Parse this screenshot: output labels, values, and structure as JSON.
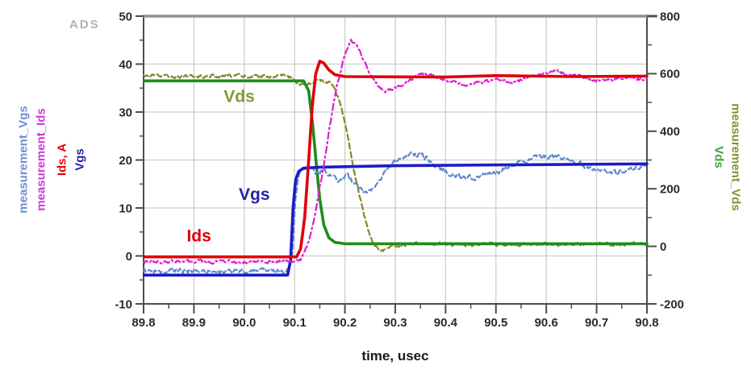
{
  "watermark": "ADS",
  "chart_data": {
    "type": "line",
    "title": "",
    "xlabel": "time, usec",
    "x_range": [
      89.8,
      90.8
    ],
    "x_ticks": {
      "values": [
        89.8,
        89.9,
        90.0,
        90.1,
        90.2,
        90.3,
        90.4,
        90.5,
        90.6,
        90.7,
        90.8
      ],
      "labels": [
        "89.8",
        "89.9",
        "90.0",
        "90.1",
        "90.2",
        "90.3",
        "90.4",
        "90.5",
        "90.6",
        "90.7",
        "90.8"
      ]
    },
    "left_axis": {
      "range": [
        -10,
        50
      ],
      "values": [
        50,
        40,
        30,
        20,
        10,
        0,
        -10
      ],
      "labels": [
        "50",
        "40",
        "30",
        "20",
        "10",
        "0",
        "-10"
      ],
      "title_stack": [
        {
          "text": "measurement_Vgs",
          "color": "#6f8fd2"
        },
        {
          "text": "measurement_Ids",
          "color": "#cb3ad4"
        },
        {
          "text": "Ids, A",
          "color": "#e00008"
        },
        {
          "text": "Vgs",
          "color": "#2424aa"
        }
      ]
    },
    "right_axis": {
      "range": [
        -200,
        800
      ],
      "values": [
        800,
        600,
        400,
        200,
        0,
        -200
      ],
      "labels": [
        "800",
        "600",
        "400",
        "200",
        "0",
        "-200"
      ],
      "title_stack": [
        {
          "text": "Vds",
          "color": "#3fa03f"
        },
        {
          "text": "measurement_Vds",
          "color": "#8a8f2f"
        }
      ]
    },
    "colors": {
      "grid": "#cdcdcd",
      "axis": "#4d4d4d",
      "border": "#919191",
      "tick_text": "#2b2b2b"
    },
    "series": [
      {
        "name": "measurement_Vds",
        "axis": "right",
        "color": "#808b25",
        "width": 2.2,
        "dash": "7 4",
        "noise": 10,
        "points": [
          [
            89.8,
            591
          ],
          [
            90.08,
            591
          ],
          [
            90.1,
            580
          ],
          [
            90.112,
            563
          ],
          [
            90.125,
            561
          ],
          [
            90.14,
            572
          ],
          [
            90.155,
            577
          ],
          [
            90.168,
            570
          ],
          [
            90.18,
            546
          ],
          [
            90.19,
            506
          ],
          [
            90.2,
            432
          ],
          [
            90.21,
            342
          ],
          [
            90.22,
            252
          ],
          [
            90.23,
            166
          ],
          [
            90.24,
            96
          ],
          [
            90.25,
            40
          ],
          [
            90.26,
            0
          ],
          [
            90.272,
            -16
          ],
          [
            90.285,
            -8
          ],
          [
            90.3,
            2
          ],
          [
            90.33,
            8
          ],
          [
            90.4,
            6
          ],
          [
            90.6,
            7
          ],
          [
            90.8,
            6
          ]
        ]
      },
      {
        "name": "Vds",
        "axis": "right",
        "color": "#1e8c1e",
        "width": 3.6,
        "dash": "",
        "noise": 0,
        "points": [
          [
            89.8,
            575
          ],
          [
            90.118,
            575
          ],
          [
            90.128,
            540
          ],
          [
            90.136,
            420
          ],
          [
            90.143,
            290
          ],
          [
            90.15,
            165
          ],
          [
            90.158,
            75
          ],
          [
            90.168,
            30
          ],
          [
            90.18,
            14
          ],
          [
            90.2,
            9
          ],
          [
            90.8,
            9
          ]
        ]
      },
      {
        "name": "measurement_Vgs",
        "axis": "left",
        "color": "#5e88d0",
        "width": 2.2,
        "dash": "6 4",
        "noise": 0.9,
        "points": [
          [
            89.8,
            -3.2
          ],
          [
            90.088,
            -3.2
          ],
          [
            90.095,
            -1
          ],
          [
            90.101,
            11
          ],
          [
            90.107,
            16.5
          ],
          [
            90.115,
            17.8
          ],
          [
            90.13,
            18.3
          ],
          [
            90.145,
            17.2
          ],
          [
            90.16,
            17.8
          ],
          [
            90.175,
            16.2
          ],
          [
            90.19,
            15.6
          ],
          [
            90.205,
            16.8
          ],
          [
            90.218,
            15.2
          ],
          [
            90.232,
            13.6
          ],
          [
            90.245,
            12.9
          ],
          [
            90.26,
            14.4
          ],
          [
            90.275,
            16.6
          ],
          [
            90.29,
            18.8
          ],
          [
            90.31,
            20.4
          ],
          [
            90.33,
            21.4
          ],
          [
            90.35,
            20.9
          ],
          [
            90.37,
            19.8
          ],
          [
            90.39,
            18.2
          ],
          [
            90.41,
            17
          ],
          [
            90.44,
            16.3
          ],
          [
            90.47,
            16.6
          ],
          [
            90.5,
            17.6
          ],
          [
            90.53,
            18.7
          ],
          [
            90.56,
            19.8
          ],
          [
            90.59,
            20.7
          ],
          [
            90.62,
            20.9
          ],
          [
            90.65,
            20
          ],
          [
            90.68,
            18.6
          ],
          [
            90.71,
            17.5
          ],
          [
            90.74,
            17.4
          ],
          [
            90.77,
            18.3
          ],
          [
            90.8,
            19
          ]
        ]
      },
      {
        "name": "Vgs",
        "axis": "left",
        "color": "#1c1cc8",
        "width": 3.6,
        "dash": "",
        "noise": 0,
        "points": [
          [
            89.8,
            -4
          ],
          [
            90.086,
            -4
          ],
          [
            90.092,
            -1
          ],
          [
            90.097,
            10
          ],
          [
            90.102,
            15.8
          ],
          [
            90.108,
            17.6
          ],
          [
            90.118,
            18.3
          ],
          [
            90.15,
            18.5
          ],
          [
            90.3,
            18.8
          ],
          [
            90.55,
            19
          ],
          [
            90.8,
            19.2
          ]
        ]
      },
      {
        "name": "measurement_Ids",
        "axis": "left",
        "color": "#dc1ed2",
        "width": 2.2,
        "dash": "8 4 2 4",
        "noise": 0.6,
        "points": [
          [
            89.8,
            -1.2
          ],
          [
            90.1,
            -1.2
          ],
          [
            90.112,
            -0.6
          ],
          [
            90.125,
            2
          ],
          [
            90.14,
            8
          ],
          [
            90.155,
            17
          ],
          [
            90.17,
            27
          ],
          [
            90.185,
            36
          ],
          [
            90.2,
            42
          ],
          [
            90.212,
            44.8
          ],
          [
            90.222,
            44.4
          ],
          [
            90.235,
            41.5
          ],
          [
            90.25,
            38
          ],
          [
            90.265,
            35.6
          ],
          [
            90.28,
            34.6
          ],
          [
            90.3,
            34.9
          ],
          [
            90.32,
            36.2
          ],
          [
            90.34,
            37.3
          ],
          [
            90.36,
            37.9
          ],
          [
            90.38,
            37.4
          ],
          [
            90.41,
            36.3
          ],
          [
            90.44,
            35.7
          ],
          [
            90.47,
            36.1
          ],
          [
            90.5,
            36.6
          ],
          [
            90.53,
            36.3
          ],
          [
            90.56,
            36.9
          ],
          [
            90.59,
            37.9
          ],
          [
            90.62,
            38.4
          ],
          [
            90.65,
            37.7
          ],
          [
            90.68,
            36.8
          ],
          [
            90.71,
            36.3
          ],
          [
            90.74,
            36.9
          ],
          [
            90.77,
            37.1
          ],
          [
            90.8,
            36.7
          ]
        ]
      },
      {
        "name": "Ids",
        "axis": "left",
        "color": "#e00008",
        "width": 3.6,
        "dash": "",
        "noise": 0,
        "points": [
          [
            89.8,
            -0.2
          ],
          [
            90.104,
            -0.2
          ],
          [
            90.112,
            1.5
          ],
          [
            90.12,
            8
          ],
          [
            90.128,
            20
          ],
          [
            90.135,
            31
          ],
          [
            90.142,
            38
          ],
          [
            90.15,
            40.6
          ],
          [
            90.158,
            40.2
          ],
          [
            90.168,
            38.8
          ],
          [
            90.18,
            37.8
          ],
          [
            90.2,
            37.4
          ],
          [
            90.4,
            37.3
          ],
          [
            90.5,
            37.6
          ],
          [
            90.65,
            37.4
          ],
          [
            90.8,
            37.5
          ]
        ]
      }
    ],
    "annotations": [
      {
        "text": "Vds",
        "x": 89.99,
        "y": 33.3,
        "color": "#7d9c33"
      },
      {
        "text": "Vgs",
        "x": 90.02,
        "y": 12.9,
        "color": "#2424aa"
      },
      {
        "text": "Ids",
        "x": 89.91,
        "y": 4.3,
        "color": "#e00008"
      }
    ]
  }
}
